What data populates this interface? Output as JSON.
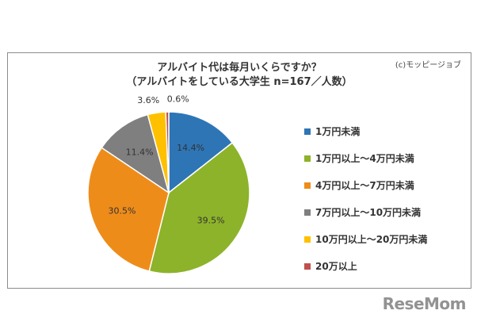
{
  "chart": {
    "title_line1": "アルバイト代は毎月いくらですか？",
    "title_line2": "（アルバイトをしている大学生 n=167／人数）",
    "credit": "(c)モッピージョブ"
  },
  "watermark": "ReseMom",
  "chart_data": {
    "type": "pie",
    "title": "アルバイト代は毎月いくらですか？",
    "subtitle": "（アルバイトをしている大学生 n=167／人数）",
    "legend_position": "right",
    "slices": [
      {
        "label": "1万円未満",
        "value": 14.4,
        "display": "14.4%",
        "color": "#2e75b6"
      },
      {
        "label": "1万円以上～4万円未満",
        "value": 39.5,
        "display": "39.5%",
        "color": "#8db32a"
      },
      {
        "label": "4万円以上～7万円未満",
        "value": 30.5,
        "display": "30.5%",
        "color": "#ee8c1a"
      },
      {
        "label": "7万円以上～10万円未満",
        "value": 11.4,
        "display": "11.4%",
        "color": "#7f7f7f"
      },
      {
        "label": "10万円以上～20万円未満",
        "value": 3.6,
        "display": "3.6%",
        "color": "#ffc000"
      },
      {
        "label": "20万以上",
        "value": 0.6,
        "display": "0.6%",
        "color": "#c0504d"
      }
    ]
  }
}
